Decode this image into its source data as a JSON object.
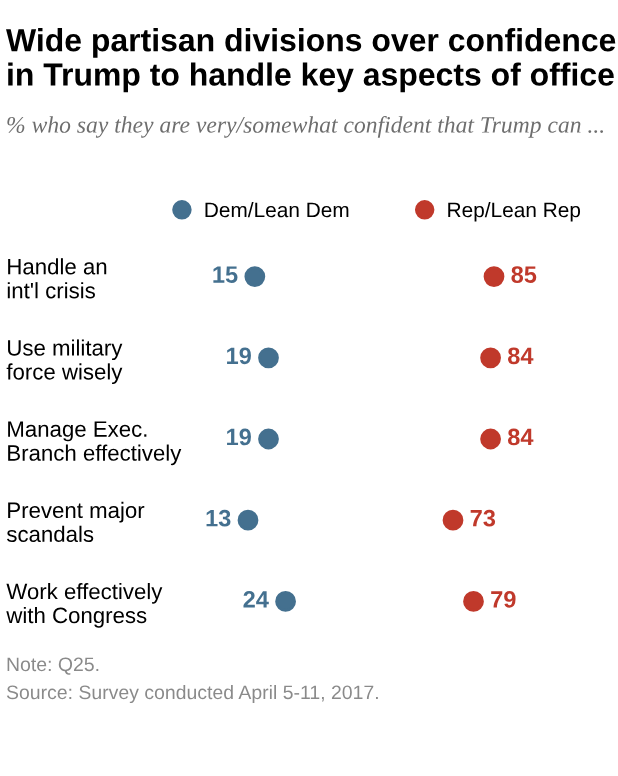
{
  "chart_data": {
    "type": "scatter",
    "orientation": "horizontal",
    "title": "Wide partisan divisions over confidence in Trump to handle key aspects of office",
    "subtitle": "% who say they are very/somewhat confident that Trump can ...",
    "categories": [
      "Handle an\nint'l crisis",
      "Use military\nforce wisely",
      "Manage Exec.\nBranch effectively",
      "Prevent major\nscandals",
      "Work effectively\nwith Congress"
    ],
    "series": [
      {
        "name": "Dem/Lean Dem",
        "color": "#44708f",
        "values": [
          15,
          19,
          19,
          13,
          24
        ]
      },
      {
        "name": "Rep/Lean Rep",
        "color": "#c0392b",
        "values": [
          85,
          84,
          84,
          73,
          79
        ]
      }
    ],
    "tick_labels": "y",
    "data_labels": true,
    "legend": "top",
    "grid": false,
    "marker": "circle",
    "annotations": [
      "Note: Q25.",
      "Source: Survey conducted April 5-11, 2017."
    ]
  }
}
